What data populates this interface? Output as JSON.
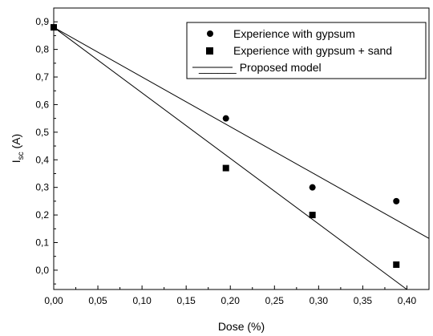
{
  "chart_data": {
    "type": "scatter",
    "xlabel": "Dose (%)",
    "ylabel_main": "I",
    "ylabel_sub": "sc",
    "ylabel_unit": " (A)",
    "xlim": [
      0.0,
      0.425
    ],
    "ylim": [
      -0.07,
      0.95
    ],
    "x_ticks": [
      0.0,
      0.05,
      0.1,
      0.15,
      0.2,
      0.25,
      0.3,
      0.35,
      0.4
    ],
    "x_tick_labels": [
      "0,00",
      "0,05",
      "0,10",
      "0,15",
      "0,20",
      "0,25",
      "0,30",
      "0,35",
      "0,40"
    ],
    "y_ticks": [
      0.0,
      0.1,
      0.2,
      0.3,
      0.4,
      0.5,
      0.6,
      0.7,
      0.8,
      0.9
    ],
    "y_tick_labels": [
      "0,0",
      "0,1",
      "0,2",
      "0,3",
      "0,4",
      "0,5",
      "0,6",
      "0,7",
      "0,8",
      "0,9"
    ],
    "grid": false,
    "legend_position": "top-right",
    "series": [
      {
        "name": "Experience with gypsum",
        "marker": "circle",
        "x": [
          0.0,
          0.195,
          0.293,
          0.388
        ],
        "y": [
          0.88,
          0.55,
          0.3,
          0.25
        ]
      },
      {
        "name": "Experience with gypsum + sand",
        "marker": "square",
        "x": [
          0.0,
          0.195,
          0.293,
          0.388
        ],
        "y": [
          0.88,
          0.37,
          0.2,
          0.02
        ]
      }
    ],
    "model": {
      "name": "Proposed model",
      "lines": [
        {
          "x": [
            0.0,
            0.425
          ],
          "y": [
            0.88,
            0.115
          ]
        },
        {
          "x": [
            0.0,
            0.4
          ],
          "y": [
            0.88,
            -0.07
          ]
        }
      ]
    },
    "legend_line_prefix": "______",
    "color": "#000000"
  }
}
